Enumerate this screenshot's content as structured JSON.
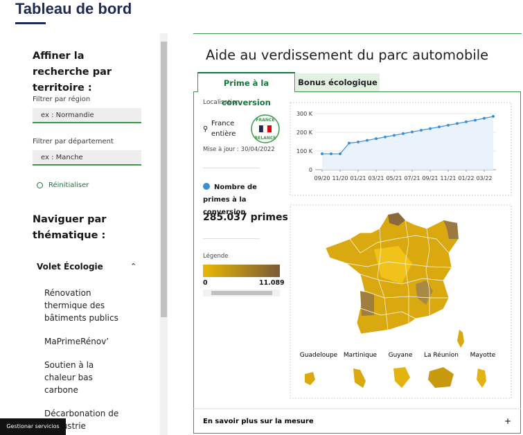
{
  "header": {
    "title": "Tableau de bord"
  },
  "sidebar": {
    "filter_heading": "Affiner la recherche par territoire :",
    "region_label": "Filtrer par région",
    "region_placeholder": "ex : Normandie",
    "department_label": "Filtrer par département",
    "department_placeholder": "ex : Manche",
    "reset": "Réinitialiser",
    "nav_heading": "Naviguer par thématique :",
    "section": "Volet Écologie",
    "items": [
      "Rénovation thermique des bâtiments publics",
      "MaPrimeRénov’",
      "Soutien à la chaleur bas carbone",
      "Décarbonation de l’industrie"
    ]
  },
  "cookie_button": "Gestionar servicios",
  "panel": {
    "title": "Aide au verdissement du parc automobile",
    "tabs": [
      "Prime à la conversion",
      "Bonus écologique"
    ],
    "location_label": "Localisation",
    "location": "France entière",
    "logo": [
      "FRANCE",
      "RELANCE"
    ],
    "updated": "Mise à jour : 30/04/2022",
    "metric_label": "Nombre de primes à la conversion",
    "metric_value": "285.037 primes",
    "legend_label": "Légende",
    "legend_min": "0",
    "legend_max": "11.089",
    "territories": [
      "Guadeloupe",
      "Martinique",
      "Guyane",
      "La Réunion",
      "Mayotte"
    ],
    "more": "En savoir plus sur la mesure",
    "more_icon": "+"
  },
  "line_chart": {
    "type": "line",
    "color": "#3a8fd6",
    "categories": [
      "09/20",
      null,
      "11/20",
      null,
      "01/21",
      null,
      "03/21",
      null,
      "05/21",
      null,
      "07/21",
      null,
      "09/21",
      null,
      "11/21",
      null,
      "01/22",
      null,
      "03/22",
      null
    ],
    "values": [
      85000,
      85000,
      85000,
      142000,
      148000,
      157000,
      166000,
      175000,
      184000,
      193000,
      202000,
      211000,
      220000,
      229000,
      238000,
      247000,
      256000,
      265000,
      275000,
      285000
    ],
    "ylim": [
      0,
      300000
    ],
    "yticks": [
      0,
      {
        "value": 100000,
        "label": "100 K"
      },
      {
        "value": 200000,
        "label": "200 K"
      },
      {
        "value": 300000,
        "label": "300 K"
      }
    ],
    "grid": true
  }
}
